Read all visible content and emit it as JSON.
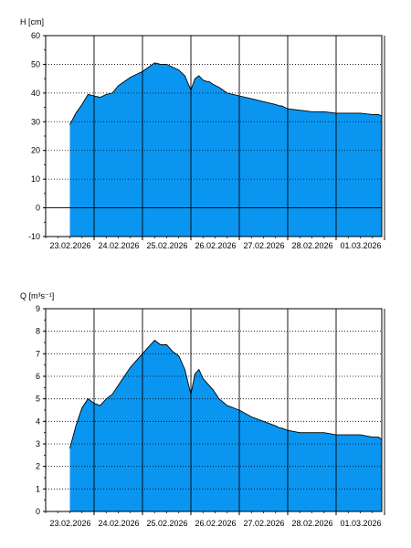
{
  "chart_data": [
    {
      "type": "area",
      "ylabel": "H [cm]",
      "ylim": [
        -10,
        60
      ],
      "yticks": [
        -10,
        0,
        10,
        20,
        30,
        40,
        50,
        60
      ],
      "xrange": [
        "22.02.2026 12:00",
        "01.03.2026 21:00"
      ],
      "xticks": [
        "23.02.2026",
        "24.02.2026",
        "25.02.2026",
        "26.02.2026",
        "27.02.2026",
        "28.02.2026",
        "01.03.2026"
      ],
      "grid": "dotted horizontal, solid vertical at day boundaries",
      "fill_color": "#0A96F0",
      "series": [
        {
          "x": [
            "2026-02-22T12:00",
            "2026-02-22T15:00",
            "2026-02-22T18:00",
            "2026-02-22T21:00",
            "2026-02-23T00:00",
            "2026-02-23T03:00",
            "2026-02-23T06:00",
            "2026-02-23T09:00",
            "2026-02-23T12:00",
            "2026-02-23T15:00",
            "2026-02-23T18:00",
            "2026-02-23T21:00",
            "2026-02-24T00:00",
            "2026-02-24T03:00",
            "2026-02-24T06:00",
            "2026-02-24T09:00",
            "2026-02-24T12:00",
            "2026-02-24T15:00",
            "2026-02-24T18:00",
            "2026-02-24T21:00",
            "2026-02-25T00:00",
            "2026-02-25T02:00",
            "2026-02-25T04:00",
            "2026-02-25T06:00",
            "2026-02-25T08:00",
            "2026-02-25T09:00",
            "2026-02-25T11:00",
            "2026-02-25T14:00",
            "2026-02-25T18:00",
            "2026-02-25T21:00",
            "2026-02-26T00:00",
            "2026-02-26T06:00",
            "2026-02-26T12:00",
            "2026-02-26T18:00",
            "2026-02-26T20:00",
            "2026-02-26T21:00",
            "2026-02-27T00:00",
            "2026-02-27T06:00",
            "2026-02-27T12:00",
            "2026-02-27T18:00",
            "2026-02-28T00:00",
            "2026-02-28T06:00",
            "2026-02-28T12:00",
            "2026-02-28T18:00",
            "2026-02-28T19:00",
            "2026-02-28T21:00",
            "2026-03-01T00:00",
            "2026-03-01T06:00",
            "2026-03-01T09:00",
            "2026-03-01T12:00",
            "2026-03-01T14:00",
            "2026-03-01T18:00",
            "2026-03-01T21:00"
          ],
          "y": [
            29,
            33,
            36,
            39.5,
            39,
            38.5,
            39.5,
            40,
            42.5,
            44,
            45.5,
            46.5,
            47.5,
            49,
            50.5,
            50,
            50,
            49,
            48,
            46,
            41,
            45,
            46,
            44.5,
            44,
            44,
            43,
            42,
            40,
            39.5,
            39,
            38,
            37,
            36,
            35.5,
            35.5,
            34.5,
            34,
            33.5,
            33.5,
            33,
            33,
            33,
            32.5,
            32.5,
            32.5,
            32,
            31.5,
            28.5,
            32,
            32,
            32,
            32
          ]
        }
      ]
    },
    {
      "type": "area",
      "ylabel": "Q [m³s⁻¹]",
      "ylim": [
        0,
        9
      ],
      "yticks": [
        0,
        1,
        2,
        3,
        4,
        5,
        6,
        7,
        8,
        9
      ],
      "xrange": [
        "22.02.2026 12:00",
        "01.03.2026 21:00"
      ],
      "xticks": [
        "23.02.2026",
        "24.02.2026",
        "25.02.2026",
        "26.02.2026",
        "27.02.2026",
        "28.02.2026",
        "01.03.2026"
      ],
      "grid": "dotted horizontal, solid vertical at day boundaries",
      "fill_color": "#0A96F0",
      "series": [
        {
          "x": [
            "2026-02-22T12:00",
            "2026-02-22T15:00",
            "2026-02-22T18:00",
            "2026-02-22T21:00",
            "2026-02-23T00:00",
            "2026-02-23T03:00",
            "2026-02-23T06:00",
            "2026-02-23T09:00",
            "2026-02-23T12:00",
            "2026-02-23T15:00",
            "2026-02-23T18:00",
            "2026-02-23T21:00",
            "2026-02-24T00:00",
            "2026-02-24T03:00",
            "2026-02-24T06:00",
            "2026-02-24T09:00",
            "2026-02-24T12:00",
            "2026-02-24T15:00",
            "2026-02-24T18:00",
            "2026-02-24T21:00",
            "2026-02-25T00:00",
            "2026-02-25T02:00",
            "2026-02-25T04:00",
            "2026-02-25T06:00",
            "2026-02-25T08:00",
            "2026-02-25T09:00",
            "2026-02-25T11:00",
            "2026-02-25T14:00",
            "2026-02-25T18:00",
            "2026-02-25T21:00",
            "2026-02-26T00:00",
            "2026-02-26T06:00",
            "2026-02-26T12:00",
            "2026-02-26T18:00",
            "2026-02-26T20:00",
            "2026-02-26T21:00",
            "2026-02-27T00:00",
            "2026-02-27T06:00",
            "2026-02-27T12:00",
            "2026-02-27T18:00",
            "2026-02-28T00:00",
            "2026-02-28T06:00",
            "2026-02-28T12:00",
            "2026-02-28T18:00",
            "2026-02-28T19:00",
            "2026-02-28T21:00",
            "2026-03-01T00:00",
            "2026-03-01T06:00",
            "2026-03-01T09:00",
            "2026-03-01T12:00",
            "2026-03-01T14:00",
            "2026-03-01T18:00",
            "2026-03-01T21:00"
          ],
          "y": [
            2.8,
            3.8,
            4.6,
            5.0,
            4.8,
            4.7,
            5.0,
            5.2,
            5.6,
            6.0,
            6.4,
            6.7,
            7.0,
            7.3,
            7.6,
            7.4,
            7.4,
            7.1,
            6.9,
            6.3,
            5.2,
            6.1,
            6.3,
            5.9,
            5.7,
            5.6,
            5.4,
            5.0,
            4.7,
            4.6,
            4.5,
            4.2,
            4.0,
            3.8,
            3.7,
            3.7,
            3.6,
            3.5,
            3.5,
            3.5,
            3.4,
            3.4,
            3.4,
            3.3,
            3.3,
            3.3,
            3.2,
            3.1,
            2.5,
            3.2,
            3.2,
            3.2,
            3.2
          ]
        }
      ]
    }
  ]
}
